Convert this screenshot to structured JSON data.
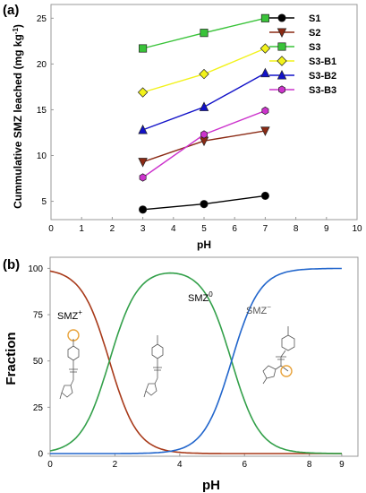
{
  "colors": {
    "S1": "#000000",
    "S2": "#8b2a14",
    "S3": "#39c339",
    "S3-B1": "#f2f21a",
    "S3-B2": "#1212c8",
    "S3-B3": "#cc33cc",
    "smz_plus": "#a83a1a",
    "smz_zero": "#33a04a",
    "smz_minus": "#2266cc",
    "highlight": "#e8a23a"
  },
  "chart_data": [
    {
      "panel": "(a)",
      "type": "line",
      "xlabel": "pH",
      "ylabel": "Cummulative SMZ leached (mg kg",
      "ylabel_sup": "-1",
      "ylabel_close": ")",
      "xlim": [
        0,
        10
      ],
      "ylim": [
        3,
        26.5
      ],
      "xticks": [
        0,
        1,
        2,
        3,
        4,
        5,
        6,
        7,
        8,
        9,
        10
      ],
      "yticks": [
        5,
        10,
        15,
        20,
        25
      ],
      "legend_position": "top-right",
      "x": [
        3,
        5,
        7
      ],
      "series": [
        {
          "name": "S1",
          "marker": "circle",
          "values": [
            4.1,
            4.7,
            5.6
          ]
        },
        {
          "name": "S2",
          "marker": "triangle-down",
          "values": [
            9.3,
            11.6,
            12.7
          ]
        },
        {
          "name": "S3",
          "marker": "square",
          "values": [
            21.7,
            23.4,
            25.0
          ]
        },
        {
          "name": "S3-B1",
          "marker": "diamond",
          "values": [
            16.9,
            18.9,
            21.7
          ]
        },
        {
          "name": "S3-B2",
          "marker": "triangle-up",
          "values": [
            12.8,
            15.3,
            19.0
          ]
        },
        {
          "name": "S3-B3",
          "marker": "hexagon",
          "values": [
            7.6,
            12.3,
            14.9
          ]
        }
      ]
    },
    {
      "panel": "(b)",
      "type": "line",
      "xlabel": "pH",
      "ylabel": "Fraction",
      "xlim": [
        0,
        9.5
      ],
      "ylim": [
        0,
        106
      ],
      "xticks": [
        0,
        2,
        4,
        6,
        8,
        9
      ],
      "yticks": [
        0,
        25,
        50,
        75,
        100
      ],
      "pKa1": 1.83,
      "pKa2": 5.6,
      "series": [
        {
          "name": "SMZ+",
          "label_main": "SMZ",
          "label_sup": "+"
        },
        {
          "name": "SMZ0",
          "label_main": "SMZ",
          "label_sup": "0"
        },
        {
          "name": "SMZ-",
          "label_main": "SMZ",
          "label_sup": "−"
        }
      ]
    }
  ]
}
